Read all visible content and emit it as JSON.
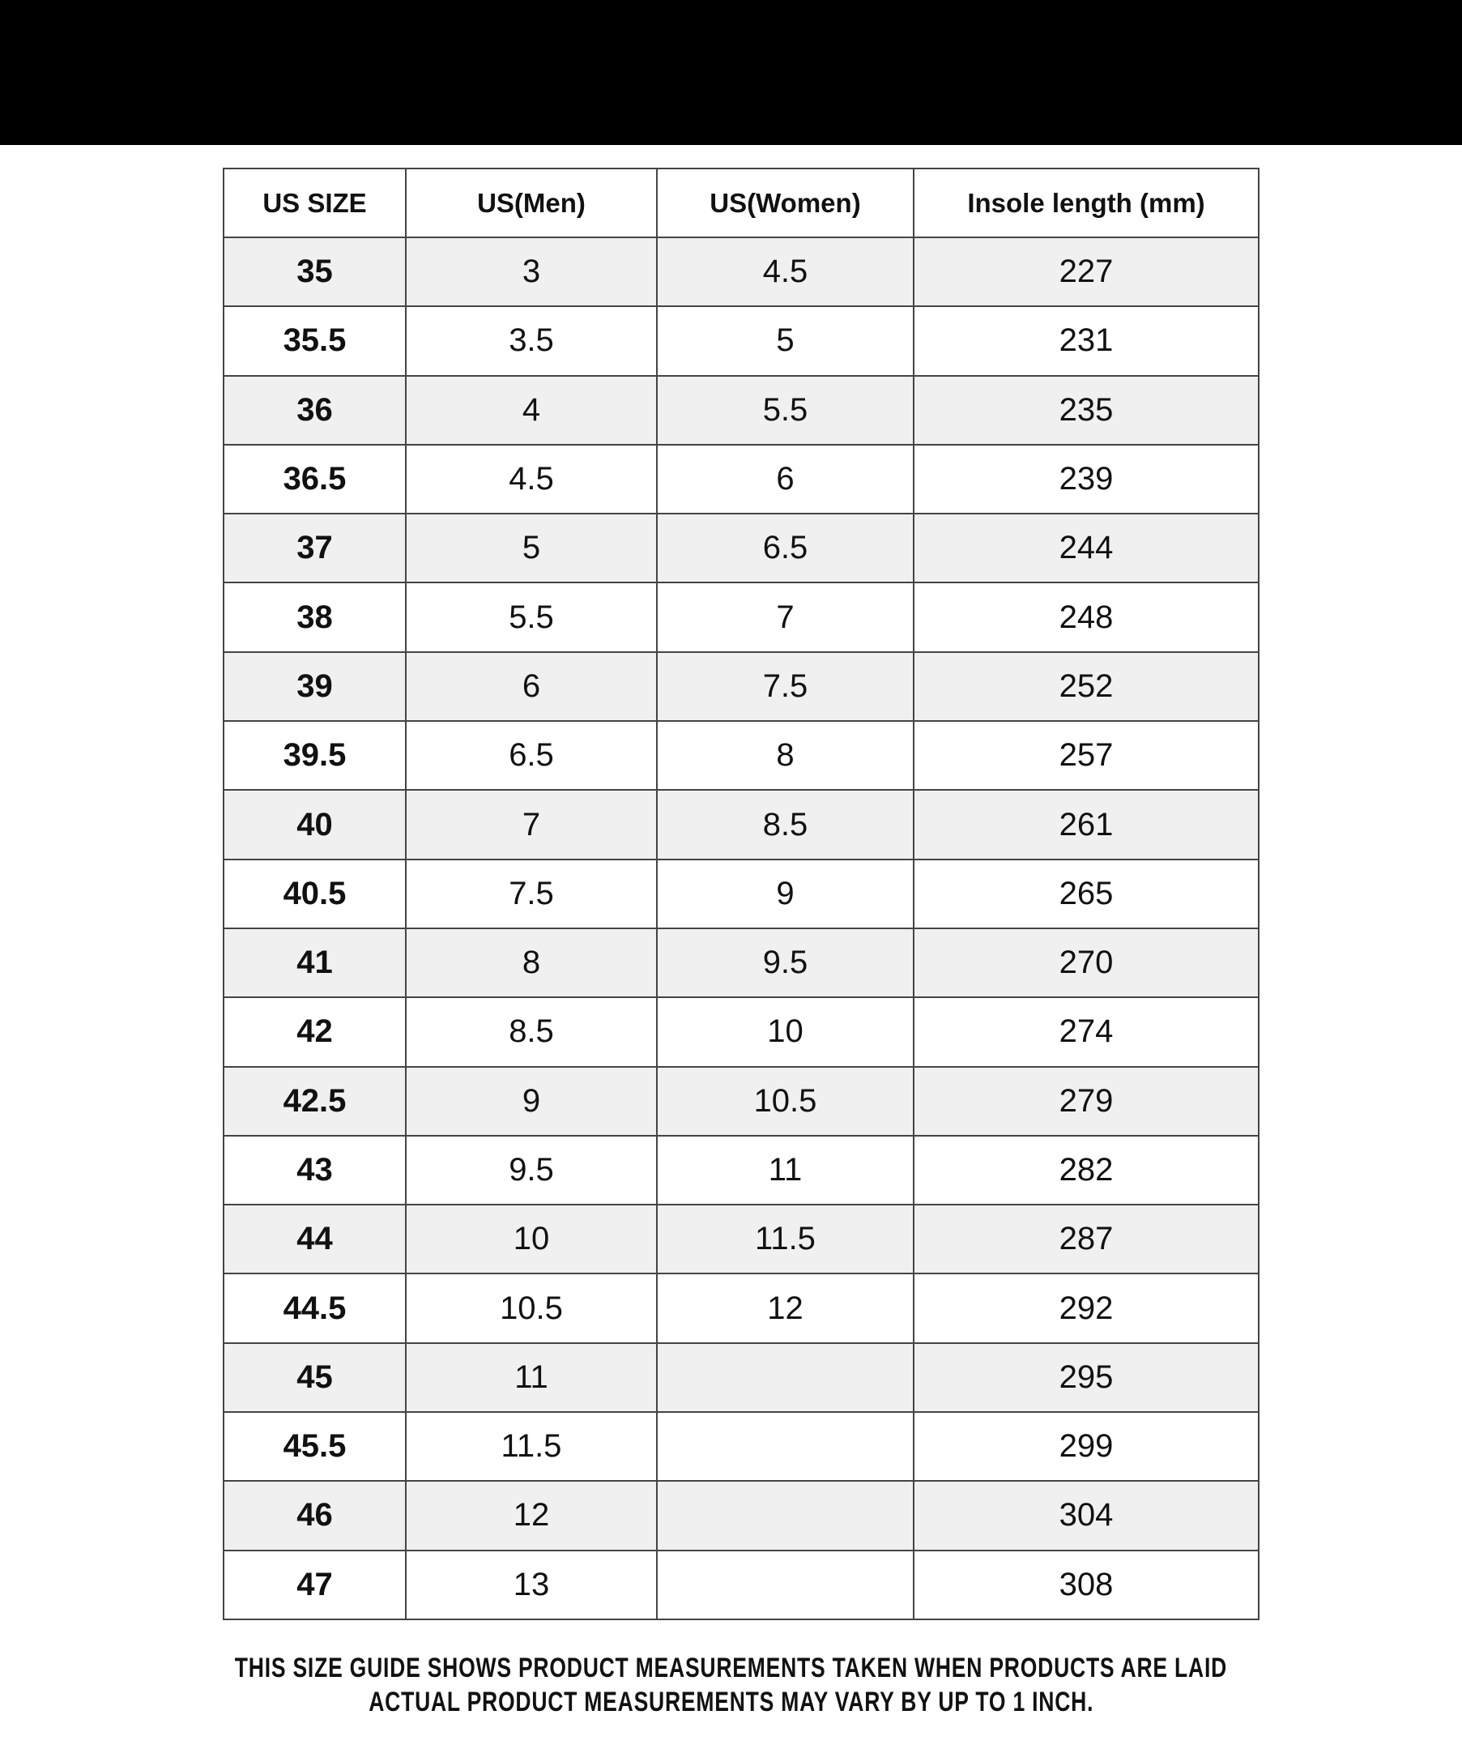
{
  "headers": [
    "US SIZE",
    "US(Men)",
    "US(Women)",
    "Insole length (mm)"
  ],
  "rows": [
    [
      "35",
      "3",
      "4.5",
      "227"
    ],
    [
      "35.5",
      "3.5",
      "5",
      "231"
    ],
    [
      "36",
      "4",
      "5.5",
      "235"
    ],
    [
      "36.5",
      "4.5",
      "6",
      "239"
    ],
    [
      "37",
      "5",
      "6.5",
      "244"
    ],
    [
      "38",
      "5.5",
      "7",
      "248"
    ],
    [
      "39",
      "6",
      "7.5",
      "252"
    ],
    [
      "39.5",
      "6.5",
      "8",
      "257"
    ],
    [
      "40",
      "7",
      "8.5",
      "261"
    ],
    [
      "40.5",
      "7.5",
      "9",
      "265"
    ],
    [
      "41",
      "8",
      "9.5",
      "270"
    ],
    [
      "42",
      "8.5",
      "10",
      "274"
    ],
    [
      "42.5",
      "9",
      "10.5",
      "279"
    ],
    [
      "43",
      "9.5",
      "11",
      "282"
    ],
    [
      "44",
      "10",
      "11.5",
      "287"
    ],
    [
      "44.5",
      "10.5",
      "12",
      "292"
    ],
    [
      "45",
      "11",
      "",
      "295"
    ],
    [
      "45.5",
      "11.5",
      "",
      "299"
    ],
    [
      "46",
      "12",
      "",
      "304"
    ],
    [
      "47",
      "13",
      "",
      "308"
    ]
  ],
  "footer": {
    "line1": "THIS SIZE GUIDE SHOWS PRODUCT MEASUREMENTS TAKEN WHEN PRODUCTS ARE LAID",
    "line2": "ACTUAL PRODUCT MEASUREMENTS MAY VARY BY UP TO 1 INCH."
  },
  "colors": {
    "top_band": "#000000",
    "alt_row": "#f0f0f0",
    "border": "#444444"
  }
}
